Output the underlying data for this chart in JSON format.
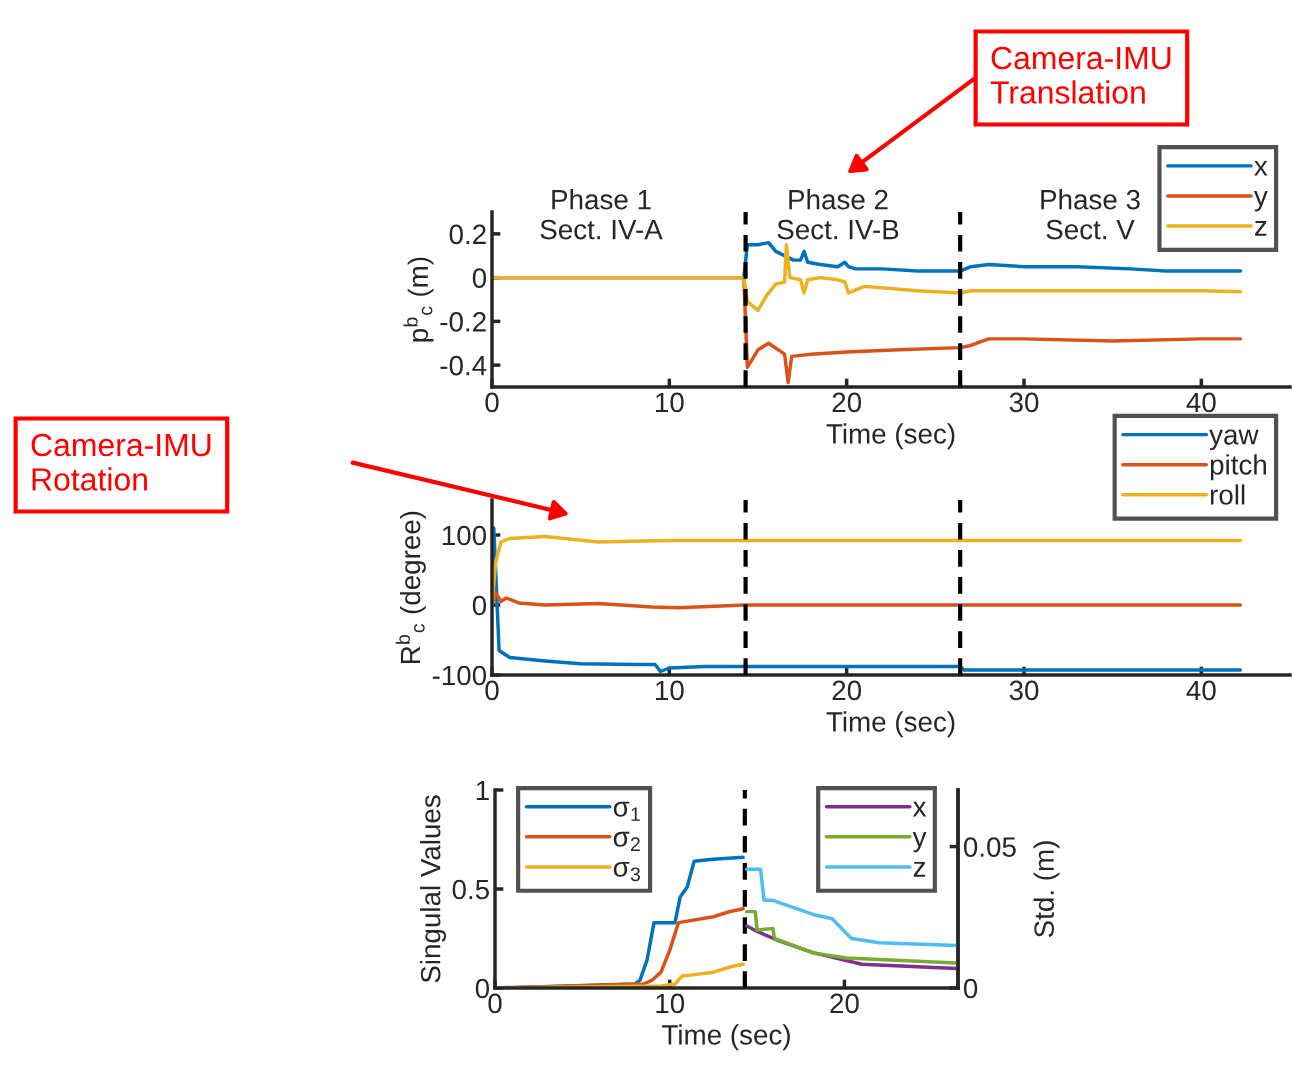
{
  "chart_data": [
    {
      "type": "line",
      "xlabel": "Time (sec)",
      "ylabel": "p$^{b}$$_{c}$ (m)",
      "xlim": [
        0,
        45
      ],
      "xticks": [
        0,
        10,
        20,
        30,
        40
      ],
      "ylim": [
        -0.5,
        0.3
      ],
      "yticks": [
        -0.4,
        -0.2,
        0,
        0.2
      ],
      "grid": false,
      "legend": "top right",
      "line_style": "solid",
      "marker": "none",
      "ref_lines": [
        {
          "axis": "x",
          "value": 14.3,
          "color": "#000000",
          "line_style": "dashed"
        },
        {
          "axis": "x",
          "value": 26.4,
          "color": "#000000",
          "line_style": "dashed"
        }
      ],
      "annotations": [
        "Phase 1\nSect. IV-A",
        "Phase 2\nSect. IV-B",
        "Phase 3\nSect. V",
        "Camera-IMU\nTranslation"
      ],
      "series": [
        {
          "name": "x",
          "color": "#0072bd",
          "x": [
            0,
            14.2,
            14.4,
            15,
            15.6,
            16,
            17,
            17.4,
            17.6,
            17.8,
            18.5,
            19.5,
            19.9,
            20.1,
            20.5,
            22,
            24,
            26.4,
            27,
            28,
            30,
            33,
            36,
            38,
            40,
            42.2
          ],
          "values": [
            0,
            0,
            0.15,
            0.15,
            0.16,
            0.12,
            0.08,
            0.08,
            0.12,
            0.07,
            0.06,
            0.05,
            0.07,
            0.05,
            0.04,
            0.04,
            0.03,
            0.03,
            0.05,
            0.06,
            0.05,
            0.05,
            0.04,
            0.03,
            0.03,
            0.03
          ]
        },
        {
          "name": "y",
          "color": "#d95319",
          "x": [
            0,
            14.2,
            14.4,
            15,
            15.6,
            16.5,
            16.7,
            16.9,
            18,
            20,
            23,
            26.4,
            27,
            28,
            30,
            35,
            40,
            42.2
          ],
          "values": [
            0,
            0,
            -0.41,
            -0.33,
            -0.3,
            -0.35,
            -0.48,
            -0.36,
            -0.35,
            -0.34,
            -0.33,
            -0.32,
            -0.31,
            -0.28,
            -0.28,
            -0.29,
            -0.28,
            -0.28
          ]
        },
        {
          "name": "z",
          "color": "#edb120",
          "x": [
            0,
            14.2,
            14.4,
            15,
            15.5,
            16,
            16.5,
            16.6,
            16.8,
            17.4,
            17.6,
            17.8,
            18.5,
            19.5,
            19.9,
            20.1,
            21,
            24,
            26.4,
            27,
            30,
            35,
            40,
            42.2
          ],
          "values": [
            0,
            0,
            -0.11,
            -0.15,
            -0.08,
            -0.03,
            -0.02,
            0.15,
            0,
            -0.01,
            -0.07,
            -0.01,
            0,
            -0.01,
            -0.02,
            -0.07,
            -0.04,
            -0.06,
            -0.07,
            -0.06,
            -0.06,
            -0.06,
            -0.06,
            -0.065
          ]
        }
      ]
    },
    {
      "type": "line",
      "xlabel": "Time (sec)",
      "ylabel": "R$^{b}$$_{c}$ (degree)",
      "xlim": [
        0,
        45
      ],
      "xticks": [
        0,
        10,
        20,
        30,
        40
      ],
      "ylim": [
        -100,
        150
      ],
      "yticks": [
        -100,
        0,
        100
      ],
      "grid": false,
      "legend": "top right",
      "line_style": "solid",
      "marker": "none",
      "ref_lines": [
        {
          "axis": "x",
          "value": 14.3,
          "color": "#000000",
          "line_style": "dashed"
        },
        {
          "axis": "x",
          "value": 26.4,
          "color": "#000000",
          "line_style": "dashed"
        }
      ],
      "annotations": [
        "Camera-IMU\nRotation"
      ],
      "series": [
        {
          "name": "yaw",
          "color": "#0072bd",
          "x": [
            0,
            0.1,
            0.4,
            1,
            3,
            5,
            8,
            9.2,
            9.5,
            10,
            12,
            14.3,
            26.4,
            26.6,
            35,
            42.2
          ],
          "values": [
            0,
            110,
            -65,
            -75,
            -80,
            -84,
            -85,
            -85,
            -95,
            -90,
            -88,
            -88,
            -88,
            -93,
            -93,
            -93
          ]
        },
        {
          "name": "pitch",
          "color": "#d95319",
          "x": [
            0,
            0.2,
            0.5,
            0.8,
            1.5,
            3,
            6,
            9,
            10.5,
            14.3,
            42.2
          ],
          "values": [
            0,
            18,
            5,
            10,
            3,
            0,
            2,
            -3,
            -4,
            0,
            0
          ]
        },
        {
          "name": "roll",
          "color": "#edb120",
          "x": [
            0,
            0.2,
            0.5,
            1,
            3,
            6,
            10,
            14.3,
            42.2
          ],
          "values": [
            0,
            60,
            90,
            95,
            98,
            90,
            92,
            92,
            92
          ]
        }
      ]
    },
    {
      "type": "line",
      "xlabel": "Time (sec)",
      "ylabel": "Singulal Values",
      "y2label": "Std. (m)",
      "xlim": [
        0,
        26.5
      ],
      "xticks": [
        0,
        10,
        20
      ],
      "ylim": [
        0,
        1
      ],
      "yticks": [
        0,
        0.5,
        1
      ],
      "y2lim": [
        0,
        0.07
      ],
      "y2ticks": [
        0,
        0.05
      ],
      "grid": false,
      "legend": "top left",
      "line_style": "solid",
      "marker": "none",
      "ref_lines": [
        {
          "axis": "x",
          "value": 14.3,
          "color": "#000000",
          "line_style": "dashed"
        }
      ],
      "series": [
        {
          "name": "σ$_{1}$",
          "color": "#0072bd",
          "x": [
            0,
            8.0,
            8.3,
            8.7,
            9.1,
            10.3,
            10.6,
            11.0,
            11.4,
            12.5,
            14.2
          ],
          "values": [
            0,
            0.02,
            0.04,
            0.14,
            0.33,
            0.33,
            0.46,
            0.51,
            0.64,
            0.65,
            0.66
          ]
        },
        {
          "name": "σ$_{2}$",
          "color": "#d95319",
          "x": [
            0,
            8.5,
            9.0,
            9.5,
            10.0,
            10.5,
            12.5,
            13.4,
            14.2
          ],
          "values": [
            0,
            0.02,
            0.04,
            0.08,
            0.19,
            0.33,
            0.36,
            0.385,
            0.4
          ]
        },
        {
          "name": "σ$_{3}$",
          "color": "#edb120",
          "x": [
            0,
            9.5,
            10.3,
            10.7,
            12.5,
            13.6,
            14.2
          ],
          "values": [
            0,
            0.01,
            0.02,
            0.06,
            0.08,
            0.11,
            0.12
          ]
        },
        {
          "name": "x",
          "color": "#7e2f8e",
          "axis": "y2",
          "x": [
            14.4,
            15.0,
            16.3,
            18.2,
            21.0,
            26.4
          ],
          "values": [
            0.022,
            0.02,
            0.0166,
            0.0125,
            0.0084,
            0.0069
          ]
        },
        {
          "name": "y",
          "color": "#77ac30",
          "axis": "y2",
          "x": [
            14.4,
            14.9,
            15.0,
            15.9,
            16.0,
            18.2,
            20.1,
            26.4
          ],
          "values": [
            0.027,
            0.027,
            0.0205,
            0.021,
            0.0175,
            0.0124,
            0.0106,
            0.0088
          ]
        },
        {
          "name": "z",
          "color": "#4dbeee",
          "axis": "y2",
          "x": [
            14.4,
            15.2,
            15.4,
            15.9,
            18.2,
            19.3,
            20.4,
            22.0,
            26.4
          ],
          "values": [
            0.042,
            0.042,
            0.031,
            0.031,
            0.026,
            0.0245,
            0.0175,
            0.016,
            0.015
          ]
        }
      ]
    }
  ]
}
